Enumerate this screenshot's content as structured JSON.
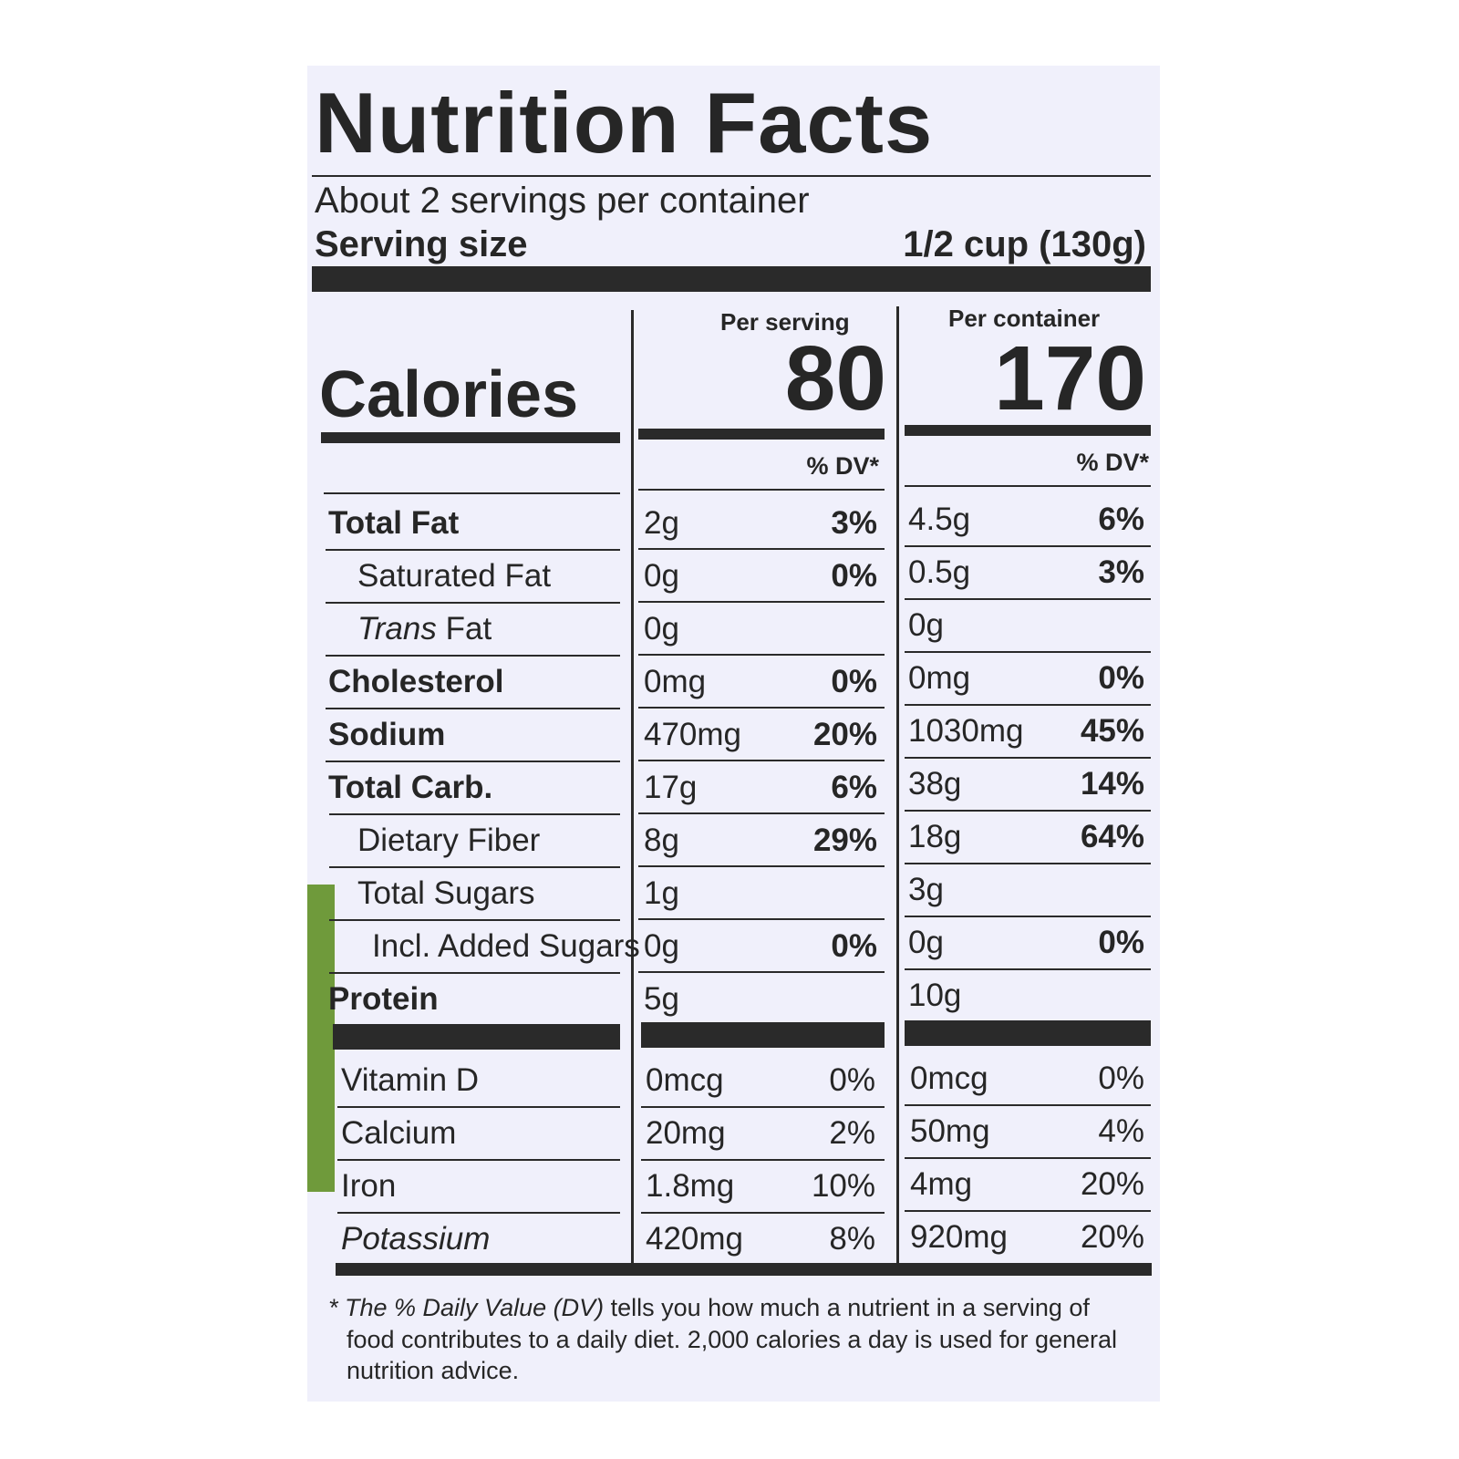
{
  "label": {
    "title": "Nutrition Facts",
    "servings_per_container": "About 2 servings per container",
    "serving_size_label": "Serving size",
    "serving_size_value": "1/2 cup (130g)",
    "per_serving_header": "Per serving",
    "per_container_header": "Per container",
    "calories_label": "Calories",
    "calories_serving": "80",
    "calories_container": "170",
    "dv_header": "% DV*",
    "nutrients": [
      {
        "name": "Total Fat",
        "s_amt": "2g",
        "s_pct": "3%",
        "c_amt": "4.5g",
        "c_pct": "6%"
      },
      {
        "name": "Saturated Fat",
        "s_amt": "0g",
        "s_pct": "0%",
        "c_amt": "0.5g",
        "c_pct": "3%"
      },
      {
        "name_italic": "Trans",
        "name": "Fat",
        "s_amt": "0g",
        "s_pct": "",
        "c_amt": "0g",
        "c_pct": ""
      },
      {
        "name": "Cholesterol",
        "s_amt": "0mg",
        "s_pct": "0%",
        "c_amt": "0mg",
        "c_pct": "0%"
      },
      {
        "name": "Sodium",
        "s_amt": "470mg",
        "s_pct": "20%",
        "c_amt": "1030mg",
        "c_pct": "45%"
      },
      {
        "name": "Total Carb.",
        "s_amt": "17g",
        "s_pct": "6%",
        "c_amt": "38g",
        "c_pct": "14%"
      },
      {
        "name": "Dietary Fiber",
        "s_amt": "8g",
        "s_pct": "29%",
        "c_amt": "18g",
        "c_pct": "64%"
      },
      {
        "name": "Total Sugars",
        "s_amt": "1g",
        "s_pct": "",
        "c_amt": "3g",
        "c_pct": ""
      },
      {
        "name": "Incl. Added Sugars",
        "s_amt": "0g",
        "s_pct": "0%",
        "c_amt": "0g",
        "c_pct": "0%"
      },
      {
        "name": "Protein",
        "s_amt": "5g",
        "s_pct": "",
        "c_amt": "10g",
        "c_pct": ""
      }
    ],
    "vitamins": [
      {
        "name": "Vitamin D",
        "s_amt": "0mcg",
        "s_pct": "0%",
        "c_amt": "0mcg",
        "c_pct": "0%"
      },
      {
        "name": "Calcium",
        "s_amt": "20mg",
        "s_pct": "2%",
        "c_amt": "50mg",
        "c_pct": "4%"
      },
      {
        "name": "Iron",
        "s_amt": "1.8mg",
        "s_pct": "10%",
        "c_amt": "4mg",
        "c_pct": "20%"
      },
      {
        "name": "Potassium",
        "s_amt": "420mg",
        "s_pct": "8%",
        "c_amt": "920mg",
        "c_pct": "20%"
      }
    ],
    "footnote_line1_prefix": "* The % Daily Value (DV)",
    "footnote_line1_rest": " tells you how much a nutrient in a serving of",
    "footnote_line2": "food contributes to a daily diet. 2,000 calories a day is used for general",
    "footnote_line3": "nutrition advice."
  },
  "colors": {
    "ink": "#262626",
    "panel": "#f0f0fb",
    "green": "#6f9a3b"
  }
}
